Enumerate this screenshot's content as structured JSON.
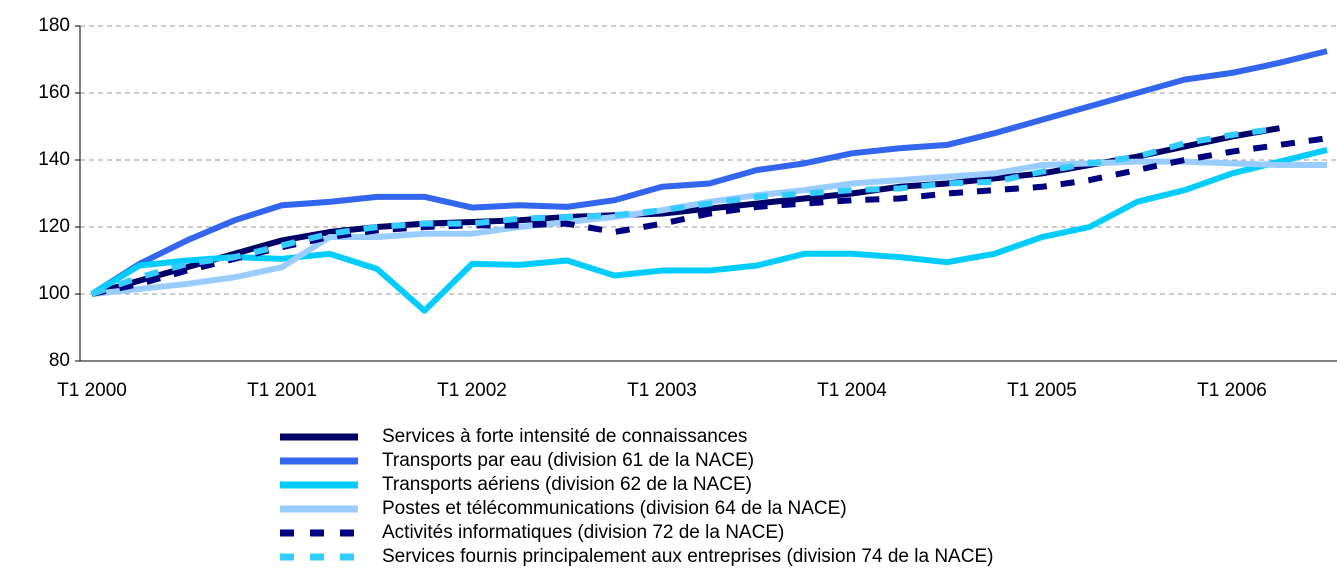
{
  "chart_data": {
    "type": "line",
    "categories": [
      "T1 2000",
      null,
      null,
      null,
      "T1 2001",
      null,
      null,
      null,
      "T1 2002",
      null,
      null,
      null,
      "T1 2003",
      null,
      null,
      null,
      "T1 2004",
      null,
      null,
      null,
      "T1 2005",
      null,
      null,
      null,
      "T1 2006",
      null,
      null
    ],
    "ylim": [
      80,
      180
    ],
    "yticks": [
      80,
      100,
      120,
      140,
      160,
      180
    ],
    "grid": true,
    "series": [
      {
        "name": "Services à forte intensité de connaissances",
        "color": "#000066",
        "dashed": false,
        "values": [
          100,
          104,
          108,
          112,
          116,
          118.5,
          120,
          121,
          121.5,
          122,
          123,
          123.5,
          124,
          125.5,
          127,
          128.5,
          130,
          132,
          133,
          134.5,
          136,
          138.5,
          141,
          144,
          147,
          149.5,
          null
        ]
      },
      {
        "name": "Transports par eau (division 61 de la NACE)",
        "color": "#3366ee",
        "dashed": false,
        "values": [
          100,
          109,
          116,
          122,
          126.5,
          127.5,
          129,
          129,
          125.8,
          126.5,
          126,
          128,
          132,
          133,
          137,
          139,
          142,
          143.5,
          144.5,
          148,
          152,
          156,
          160,
          164,
          166,
          169,
          172.5
        ]
      },
      {
        "name": "Transports aériens (division 62 de la NACE)",
        "color": "#00ccff",
        "dashed": false,
        "values": [
          100,
          108.5,
          110,
          111,
          110.5,
          112,
          107.5,
          95,
          109,
          108.7,
          110,
          105.5,
          107,
          107,
          108.5,
          112,
          112,
          111,
          109.5,
          112,
          117,
          120,
          127.5,
          131,
          136,
          139.5,
          143
        ]
      },
      {
        "name": "Postes et télécommunications (division 64 de la NACE)",
        "color": "#99ccff",
        "dashed": false,
        "values": [
          100,
          101.5,
          103,
          105,
          108,
          117,
          117,
          118,
          118,
          120,
          121.5,
          123,
          125,
          127.5,
          129.5,
          131,
          133,
          134,
          135,
          136,
          138.5,
          139,
          139.5,
          139.5,
          139,
          138.5,
          138.5
        ]
      },
      {
        "name": "Activités informatiques (division 72 de la NACE)",
        "color": "#000080",
        "dashed": true,
        "values": [
          100,
          103,
          107,
          110.5,
          114,
          117,
          119,
          120,
          120.5,
          120.5,
          121,
          118.5,
          121,
          124,
          126,
          127,
          128,
          128.5,
          130,
          131,
          132,
          134,
          137,
          140,
          142.5,
          144.5,
          146.5
        ]
      },
      {
        "name": "Services fournis principalement aux entreprises (division 74 de la NACE)",
        "color": "#33ccff",
        "dashed": true,
        "values": [
          100,
          105,
          109,
          111,
          114.5,
          118,
          120,
          121,
          121,
          122.5,
          123,
          123.5,
          125,
          127,
          129,
          130,
          131,
          131.5,
          133,
          133.5,
          136.5,
          139,
          141,
          145,
          147.5,
          149.5,
          null
        ]
      }
    ]
  }
}
